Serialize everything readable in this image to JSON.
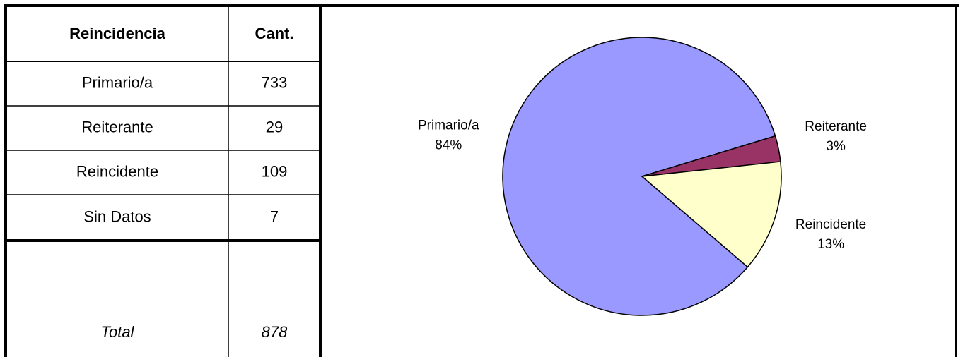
{
  "table": {
    "header": [
      "Reincidencia",
      "Cant."
    ],
    "rows": [
      [
        "Primario/a",
        "733"
      ],
      [
        "Reiterante",
        "29"
      ],
      [
        "Reincidente",
        "109"
      ],
      [
        "Sin Datos",
        "7"
      ]
    ],
    "total": [
      "Total",
      "878"
    ]
  },
  "chart_data": {
    "type": "pie",
    "categories": [
      "Primario/a",
      "Reiterante",
      "Reincidente"
    ],
    "values": [
      84,
      3,
      13
    ],
    "value_labels": [
      "84%",
      "3%",
      "13%"
    ],
    "colors": [
      "#9999ff",
      "#993366",
      "#ffffcc"
    ]
  }
}
